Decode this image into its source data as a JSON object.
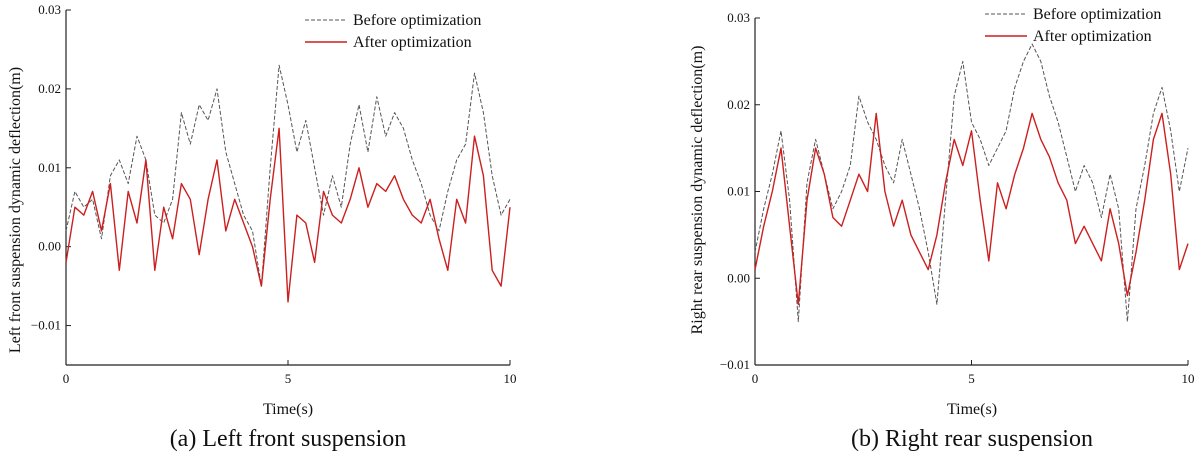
{
  "colors": {
    "before": "#555555",
    "after": "#cc1f1f",
    "axis": "#222222"
  },
  "chart_data": [
    {
      "type": "line",
      "caption": "(a) Left front suspension",
      "xlabel": "Time(s)",
      "ylabel": "Left front suspension dynamic deflection(m)",
      "xlim": [
        0,
        10
      ],
      "ylim": [
        -0.015,
        0.03
      ],
      "xticks": [
        {
          "v": 0,
          "label": "0"
        },
        {
          "v": 5,
          "label": "5"
        },
        {
          "v": 10,
          "label": "10"
        }
      ],
      "yticks": [
        {
          "v": -0.01,
          "label": "−0.01"
        },
        {
          "v": 0,
          "label": "0.00"
        },
        {
          "v": 0.01,
          "label": "0.01"
        },
        {
          "v": 0.02,
          "label": "0.02"
        },
        {
          "v": 0.03,
          "label": "0.03"
        }
      ],
      "legend": "top-right",
      "grid": false,
      "series": [
        {
          "name": "Before optimization",
          "style": "dashed",
          "x": [
            0,
            0.2,
            0.4,
            0.6,
            0.8,
            1,
            1.2,
            1.4,
            1.6,
            1.8,
            2,
            2.2,
            2.4,
            2.6,
            2.8,
            3,
            3.2,
            3.4,
            3.6,
            3.8,
            4,
            4.2,
            4.4,
            4.6,
            4.8,
            5,
            5.2,
            5.4,
            5.6,
            5.8,
            6,
            6.2,
            6.4,
            6.6,
            6.8,
            7,
            7.2,
            7.4,
            7.6,
            7.8,
            8,
            8.2,
            8.4,
            8.6,
            8.8,
            9,
            9.2,
            9.4,
            9.6,
            9.8,
            10
          ],
          "y": [
            0.002,
            0.007,
            0.005,
            0.006,
            0.001,
            0.009,
            0.011,
            0.008,
            0.014,
            0.011,
            0.004,
            0.003,
            0.006,
            0.017,
            0.013,
            0.018,
            0.016,
            0.02,
            0.012,
            0.008,
            0.004,
            0.002,
            -0.005,
            0.01,
            0.023,
            0.018,
            0.012,
            0.016,
            0.01,
            0.004,
            0.009,
            0.005,
            0.013,
            0.018,
            0.012,
            0.019,
            0.014,
            0.017,
            0.015,
            0.011,
            0.008,
            0.004,
            0.002,
            0.007,
            0.011,
            0.013,
            0.022,
            0.017,
            0.009,
            0.004,
            0.006
          ]
        },
        {
          "name": "After optimization",
          "style": "solid",
          "x": [
            0,
            0.2,
            0.4,
            0.6,
            0.8,
            1,
            1.2,
            1.4,
            1.6,
            1.8,
            2,
            2.2,
            2.4,
            2.6,
            2.8,
            3,
            3.2,
            3.4,
            3.6,
            3.8,
            4,
            4.2,
            4.4,
            4.6,
            4.8,
            5,
            5.2,
            5.4,
            5.6,
            5.8,
            6,
            6.2,
            6.4,
            6.6,
            6.8,
            7,
            7.2,
            7.4,
            7.6,
            7.8,
            8,
            8.2,
            8.4,
            8.6,
            8.8,
            9,
            9.2,
            9.4,
            9.6,
            9.8,
            10
          ],
          "y": [
            -0.002,
            0.005,
            0.004,
            0.007,
            0.002,
            0.008,
            -0.003,
            0.007,
            0.003,
            0.011,
            -0.003,
            0.005,
            0.001,
            0.008,
            0.006,
            -0.001,
            0.006,
            0.011,
            0.002,
            0.006,
            0.003,
            0,
            -0.005,
            0.006,
            0.015,
            -0.007,
            0.004,
            0.003,
            -0.002,
            0.007,
            0.004,
            0.003,
            0.006,
            0.01,
            0.005,
            0.008,
            0.007,
            0.009,
            0.006,
            0.004,
            0.003,
            0.006,
            0.001,
            -0.003,
            0.006,
            0.003,
            0.014,
            0.009,
            -0.003,
            -0.005,
            0.005
          ]
        }
      ]
    },
    {
      "type": "line",
      "caption": "(b) Right rear suspension",
      "xlabel": "Time(s)",
      "ylabel": "Right rear suspension dynamic deflection(m)",
      "xlim": [
        0,
        10
      ],
      "ylim": [
        -0.01,
        0.03
      ],
      "xticks": [
        {
          "v": 0,
          "label": "0"
        },
        {
          "v": 5,
          "label": "5"
        },
        {
          "v": 10,
          "label": "10"
        }
      ],
      "yticks": [
        {
          "v": -0.01,
          "label": "−0.01"
        },
        {
          "v": 0,
          "label": "0.00"
        },
        {
          "v": 0.01,
          "label": "0.01"
        },
        {
          "v": 0.02,
          "label": "0.02"
        },
        {
          "v": 0.03,
          "label": "0.03"
        }
      ],
      "legend": "top-right",
      "grid": false,
      "series": [
        {
          "name": "Before optimization",
          "style": "dashed",
          "x": [
            0,
            0.2,
            0.4,
            0.6,
            0.8,
            1,
            1.2,
            1.4,
            1.6,
            1.8,
            2,
            2.2,
            2.4,
            2.6,
            2.8,
            3,
            3.2,
            3.4,
            3.6,
            3.8,
            4,
            4.2,
            4.4,
            4.6,
            4.8,
            5,
            5.2,
            5.4,
            5.6,
            5.8,
            6,
            6.2,
            6.4,
            6.6,
            6.8,
            7,
            7.2,
            7.4,
            7.6,
            7.8,
            8,
            8.2,
            8.4,
            8.6,
            8.8,
            9,
            9.2,
            9.4,
            9.6,
            9.8,
            10
          ],
          "y": [
            0.003,
            0.008,
            0.012,
            0.017,
            0.009,
            -0.005,
            0.011,
            0.016,
            0.012,
            0.008,
            0.01,
            0.013,
            0.021,
            0.018,
            0.016,
            0.013,
            0.011,
            0.016,
            0.012,
            0.008,
            0.003,
            -0.003,
            0.009,
            0.021,
            0.025,
            0.018,
            0.016,
            0.013,
            0.015,
            0.017,
            0.022,
            0.025,
            0.027,
            0.025,
            0.021,
            0.018,
            0.014,
            0.01,
            0.013,
            0.011,
            0.007,
            0.012,
            0.008,
            -0.005,
            0.008,
            0.013,
            0.019,
            0.022,
            0.017,
            0.01,
            0.015
          ]
        },
        {
          "name": "After  optimization",
          "style": "solid",
          "x": [
            0,
            0.2,
            0.4,
            0.6,
            0.8,
            1,
            1.2,
            1.4,
            1.6,
            1.8,
            2,
            2.2,
            2.4,
            2.6,
            2.8,
            3,
            3.2,
            3.4,
            3.6,
            3.8,
            4,
            4.2,
            4.4,
            4.6,
            4.8,
            5,
            5.2,
            5.4,
            5.6,
            5.8,
            6,
            6.2,
            6.4,
            6.6,
            6.8,
            7,
            7.2,
            7.4,
            7.6,
            7.8,
            8,
            8.2,
            8.4,
            8.6,
            8.8,
            9,
            9.2,
            9.4,
            9.6,
            9.8,
            10
          ],
          "y": [
            0.001,
            0.006,
            0.01,
            0.015,
            0.006,
            -0.003,
            0.009,
            0.015,
            0.012,
            0.007,
            0.006,
            0.009,
            0.012,
            0.01,
            0.019,
            0.01,
            0.006,
            0.009,
            0.005,
            0.003,
            0.001,
            0.005,
            0.011,
            0.016,
            0.013,
            0.017,
            0.009,
            0.002,
            0.011,
            0.008,
            0.012,
            0.015,
            0.019,
            0.016,
            0.014,
            0.011,
            0.009,
            0.004,
            0.006,
            0.004,
            0.002,
            0.008,
            0.004,
            -0.002,
            0.003,
            0.009,
            0.016,
            0.019,
            0.012,
            0.001,
            0.004
          ]
        }
      ]
    }
  ]
}
